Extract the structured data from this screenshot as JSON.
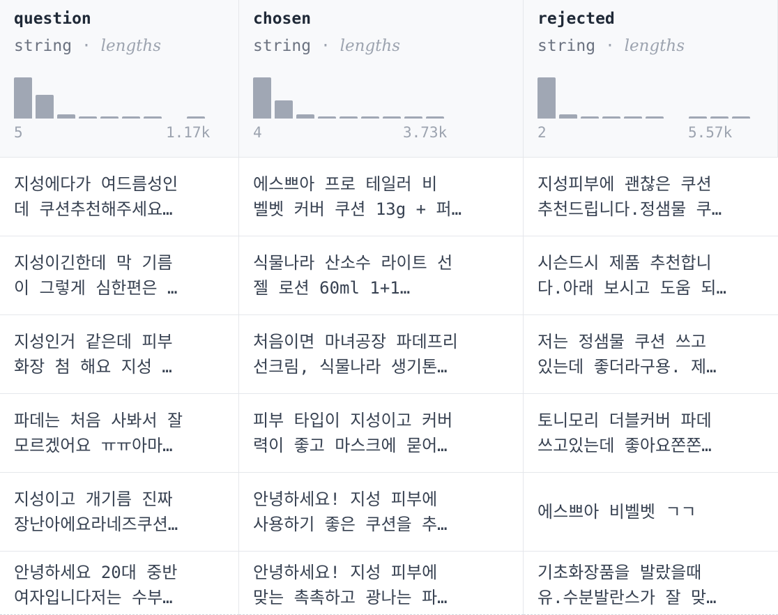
{
  "columns": [
    {
      "name": "question",
      "type": "string",
      "sep": "·",
      "lengths_label": "lengths",
      "min": "5",
      "max": "1.17k",
      "histogram": [
        0.95,
        0.55,
        0.1,
        0.03,
        0.03,
        0.03,
        0.03,
        0.0,
        0.03
      ]
    },
    {
      "name": "chosen",
      "type": "string",
      "sep": "·",
      "lengths_label": "lengths",
      "min": "4",
      "max": "3.73k",
      "histogram": [
        0.95,
        0.42,
        0.1,
        0.03,
        0.03,
        0.03,
        0.03,
        0.03,
        0.03
      ]
    },
    {
      "name": "rejected",
      "type": "string",
      "sep": "·",
      "lengths_label": "lengths",
      "min": "2",
      "max": "5.57k",
      "histogram": [
        0.95,
        0.1,
        0.03,
        0.03,
        0.03,
        0.03,
        0.0,
        0.03,
        0.03,
        0.03
      ]
    }
  ],
  "rows": [
    [
      "지성에다가 여드름성인\n데 쿠션추천해주세요…",
      "에스쁘아 프로 테일러 비\n벨벳 커버 쿠션 13g + 퍼…",
      "지성피부에 괜찮은 쿠션\n추천드립니다.정샘물 쿠…"
    ],
    [
      "지성이긴한데 막 기름\n이 그렇게 심한편은 …",
      "식물나라 산소수 라이트 선\n젤 로션 60ml 1+1…",
      "시슨드시 제품 추천합니\n다.아래 보시고 도움 되…"
    ],
    [
      "지성인거 같은데 피부\n화장 첨 해요 지성 …",
      "처음이면 마녀공장 파데프리\n선크림, 식물나라 생기톤…",
      "저는 정샘물 쿠션 쓰고\n있는데 좋더라구용. 제…"
    ],
    [
      "파데는 처음 사봐서 잘\n모르겠어요 ㅠㅠ아마…",
      "피부 타입이 지성이고 커버\n력이 좋고 마스크에 묻어…",
      "토니모리 더블커버 파데\n쓰고있는데 좋아요쫀쫀…"
    ],
    [
      "지성이고 개기름 진짜\n장난아에요라네즈쿠션…",
      "안녕하세요! 지성 피부에\n사용하기 좋은 쿠션을 추…",
      "에스쁘아 비벨벳 ㄱㄱ"
    ],
    [
      "안녕하세요 20대 중반\n여자입니다저는 수부…",
      "안녕하세요! 지성 피부에\n맞는 촉촉하고 광나는 파…",
      "기초화장품을 발랐을때\n유.수분발란스가 잘 맞…"
    ]
  ]
}
